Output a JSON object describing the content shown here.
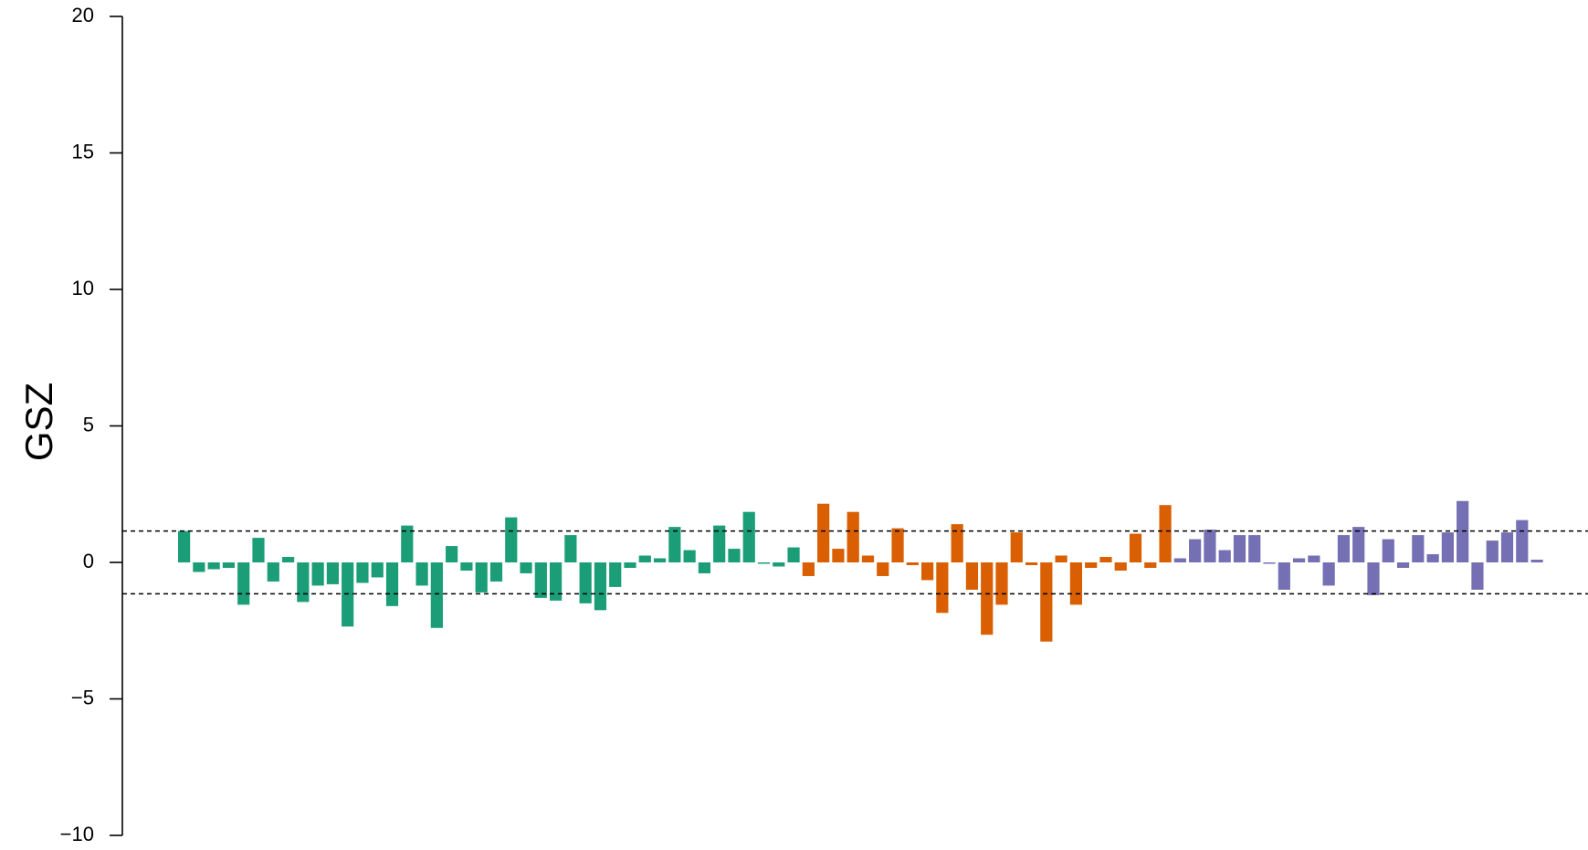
{
  "chart_data": {
    "type": "bar",
    "ylabel": "GSZ",
    "xlabel": "",
    "title": "",
    "ylim": [
      -10,
      20
    ],
    "yticks": [
      -10,
      -5,
      0,
      5,
      10,
      15,
      20
    ],
    "ytick_labels": [
      "−10",
      "−5",
      "0",
      "5",
      "10",
      "15",
      "20"
    ],
    "grid": false,
    "legend": "none",
    "threshold_lines": [
      1.15,
      -1.15
    ],
    "threshold_style": "black dashed",
    "series": [
      {
        "color": "#1b9e77",
        "values": [
          1.15,
          -0.35,
          -0.25,
          -0.2,
          -1.55,
          0.9,
          -0.7,
          0.2,
          -1.45,
          -0.85,
          -0.8,
          -2.35,
          -0.75,
          -0.55,
          -1.6,
          1.35,
          -0.85,
          -2.4,
          0.6,
          -0.3,
          -1.1,
          -0.7,
          1.65,
          -0.4,
          -1.3,
          -1.4,
          1.0,
          -1.5,
          -1.75,
          -0.9,
          -0.2,
          0.25,
          0.15,
          1.3,
          0.45,
          -0.4,
          1.35,
          0.5,
          1.85,
          -0.05,
          -0.15,
          0.55
        ]
      },
      {
        "color": "#d95f02",
        "values": [
          -0.5,
          2.15,
          0.5,
          1.85,
          0.25,
          -0.5,
          1.25,
          -0.1,
          -0.65,
          -1.85,
          1.4,
          -1.0,
          -2.65,
          -1.55,
          1.1,
          -0.1,
          -2.9,
          0.25,
          -1.55,
          -0.2,
          0.2,
          -0.3,
          1.05,
          -0.2,
          2.1
        ]
      },
      {
        "color": "#7570b3",
        "values": [
          0.15,
          0.85,
          1.2,
          0.45,
          1.0,
          1.0,
          -0.05,
          -1.0,
          0.15,
          0.25,
          -0.85,
          1.0,
          1.3,
          -1.2,
          0.85,
          -0.2,
          1.0,
          0.3,
          1.1,
          2.25,
          -1.0,
          0.8,
          1.1,
          1.55,
          0.1
        ]
      }
    ]
  }
}
